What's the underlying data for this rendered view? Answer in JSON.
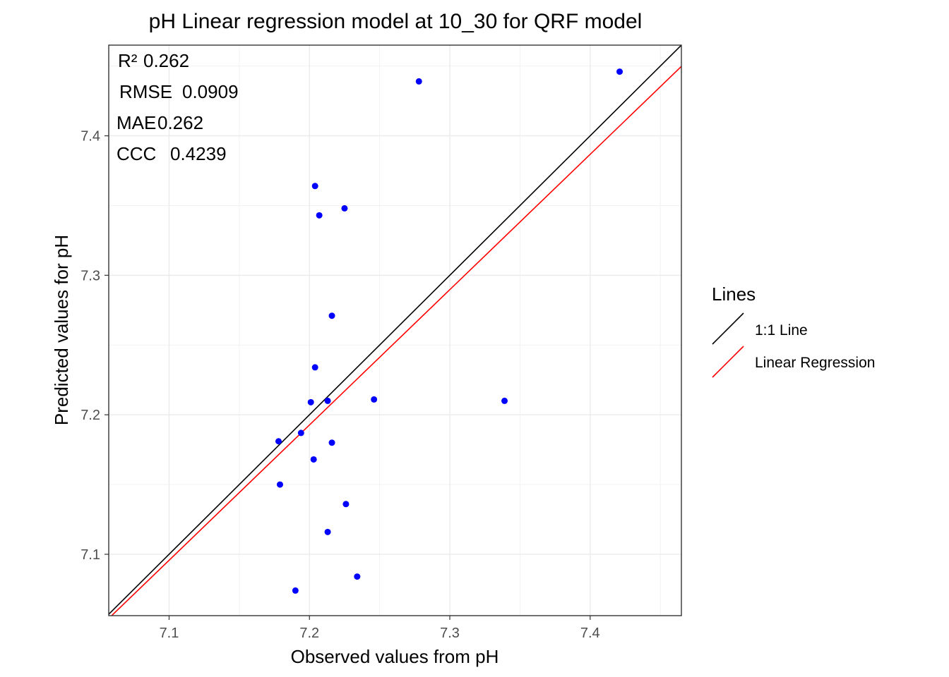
{
  "chart_data": {
    "type": "scatter",
    "title": "pH  Linear regression model at  10_30  for  QRF  model",
    "xlabel": "Observed values from pH",
    "ylabel": "Predicted values for pH",
    "xlim": [
      7.057,
      7.465
    ],
    "ylim": [
      7.056,
      7.465
    ],
    "x_ticks": [
      7.1,
      7.2,
      7.3,
      7.4
    ],
    "y_ticks": [
      7.1,
      7.2,
      7.3,
      7.4
    ],
    "x_tick_labels": [
      "7.1",
      "7.2",
      "7.3",
      "7.4"
    ],
    "y_tick_labels": [
      "7.1",
      "7.2",
      "7.3",
      "7.4"
    ],
    "grid": true,
    "point_color": "#0000ff",
    "points": [
      {
        "x": 7.278,
        "y": 7.439
      },
      {
        "x": 7.421,
        "y": 7.446
      },
      {
        "x": 7.204,
        "y": 7.364
      },
      {
        "x": 7.207,
        "y": 7.343
      },
      {
        "x": 7.225,
        "y": 7.348
      },
      {
        "x": 7.216,
        "y": 7.271
      },
      {
        "x": 7.204,
        "y": 7.234
      },
      {
        "x": 7.201,
        "y": 7.209
      },
      {
        "x": 7.213,
        "y": 7.21
      },
      {
        "x": 7.246,
        "y": 7.211
      },
      {
        "x": 7.339,
        "y": 7.21
      },
      {
        "x": 7.178,
        "y": 7.181
      },
      {
        "x": 7.194,
        "y": 7.187
      },
      {
        "x": 7.216,
        "y": 7.18
      },
      {
        "x": 7.203,
        "y": 7.168
      },
      {
        "x": 7.179,
        "y": 7.15
      },
      {
        "x": 7.226,
        "y": 7.136
      },
      {
        "x": 7.213,
        "y": 7.116
      },
      {
        "x": 7.234,
        "y": 7.084
      },
      {
        "x": 7.19,
        "y": 7.074
      }
    ],
    "lines": [
      {
        "name": "1:1 Line",
        "color": "#000000",
        "slope": 1.0,
        "intercept": 0.0
      },
      {
        "name": "Linear Regression",
        "color": "#ff0000",
        "slope": 0.97,
        "intercept": 0.2087
      }
    ],
    "stats": [
      {
        "label": "R²",
        "value": "0.262"
      },
      {
        "label": "RMSE",
        "value": "0.0909"
      },
      {
        "label": "MAE",
        "value": "0.262"
      },
      {
        "label": "CCC",
        "value": "0.4239"
      }
    ],
    "legend": {
      "title": "Lines",
      "placement": "right",
      "items": [
        "1:1 Line",
        "Linear Regression"
      ]
    }
  }
}
